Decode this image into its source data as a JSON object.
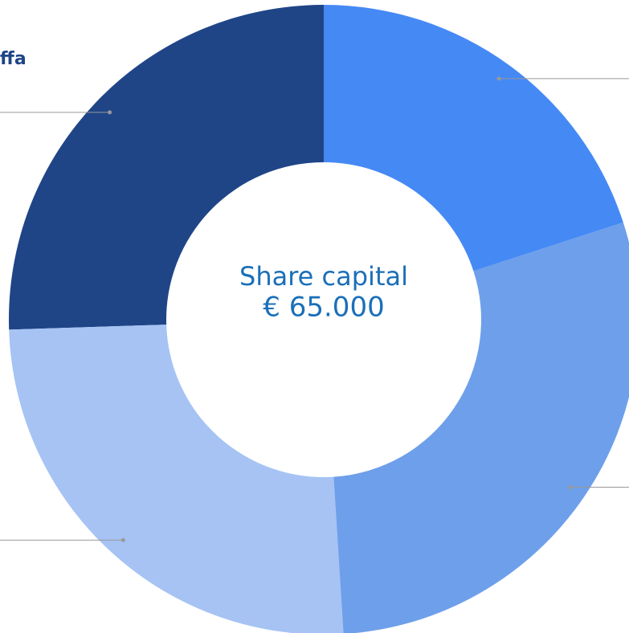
{
  "chart_data": {
    "type": "donut",
    "center_title": "Share capital",
    "center_value": "€ 65.000",
    "categories": [
      null,
      null,
      null,
      "ffa"
    ],
    "values": [
      20,
      29,
      25.5,
      25.5
    ],
    "colors": [
      "#4589f5",
      "#6e9fea",
      "#a6c3f4",
      "#1f4587"
    ]
  }
}
